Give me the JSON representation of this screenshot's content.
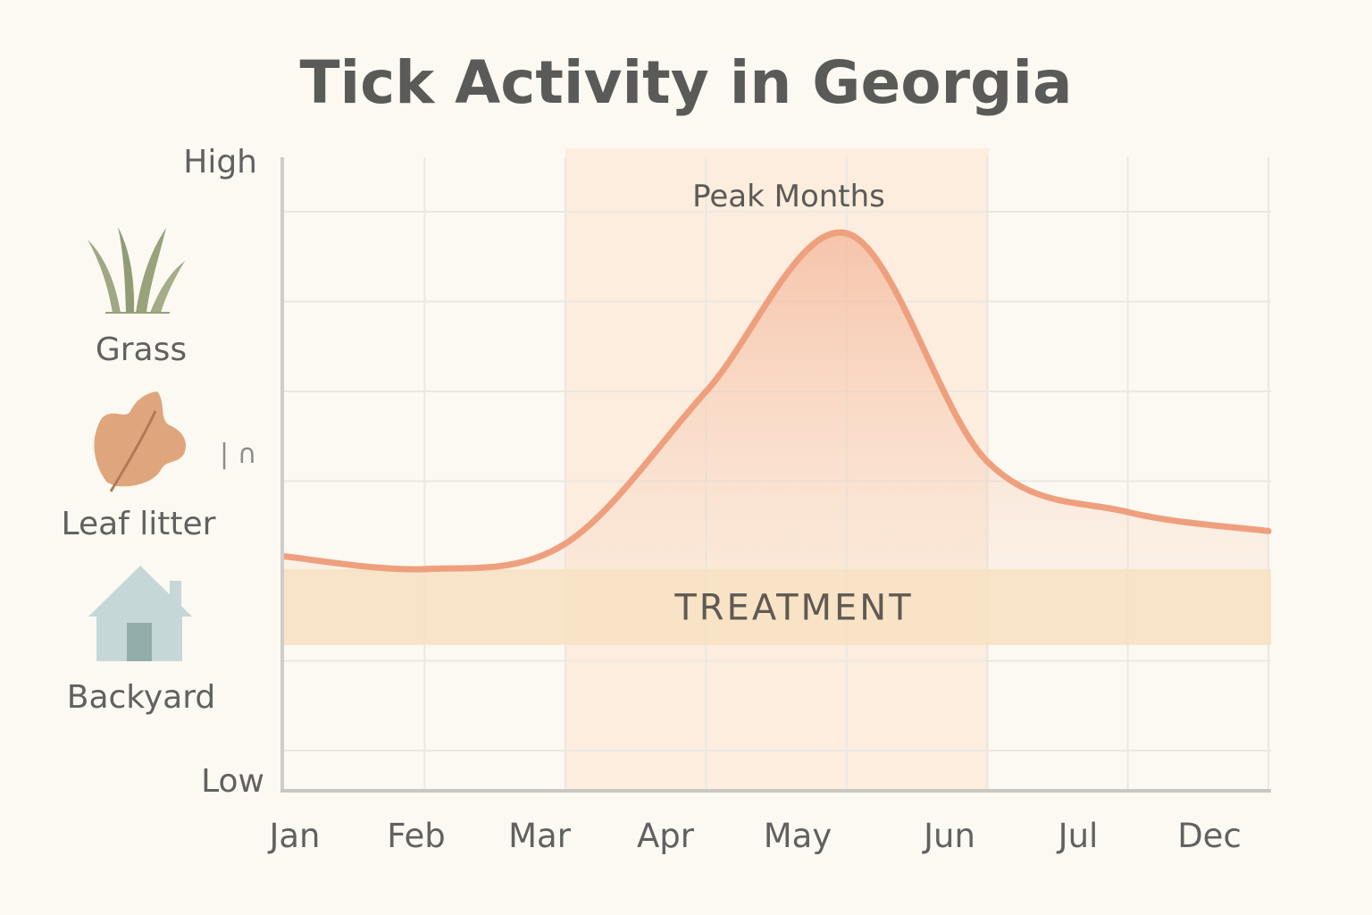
{
  "chart_data": {
    "type": "line",
    "title": "Tick Activity in Georgia",
    "categories": [
      "Jan",
      "Feb",
      "Mar",
      "Apr",
      "May",
      "Jun",
      "Jul",
      "Dec"
    ],
    "series": [
      {
        "values": [
          3.7,
          3.5,
          3.9,
          6.3,
          8.8,
          5.2,
          4.4,
          4.1
        ],
        "color": "#eea07e"
      }
    ],
    "ylim": [
      0,
      10
    ],
    "y_axis_labels": {
      "high": "High",
      "low": "Low"
    },
    "highlight_band": {
      "label": "Peak Months",
      "from": "Mar",
      "to": "Jun",
      "color": "#fbe3cd"
    },
    "treatment_band": {
      "label": "TREATMENT",
      "y_from": 2.3,
      "y_to": 3.5,
      "color": "#f7e1c2"
    },
    "grid": true,
    "habitats": [
      {
        "label": "Grass",
        "icon": "grass-icon"
      },
      {
        "label": "Leaf litter",
        "icon": "leaf-icon"
      },
      {
        "label": "Backyard",
        "icon": "house-icon"
      }
    ],
    "stray_mark": "| ∩"
  }
}
